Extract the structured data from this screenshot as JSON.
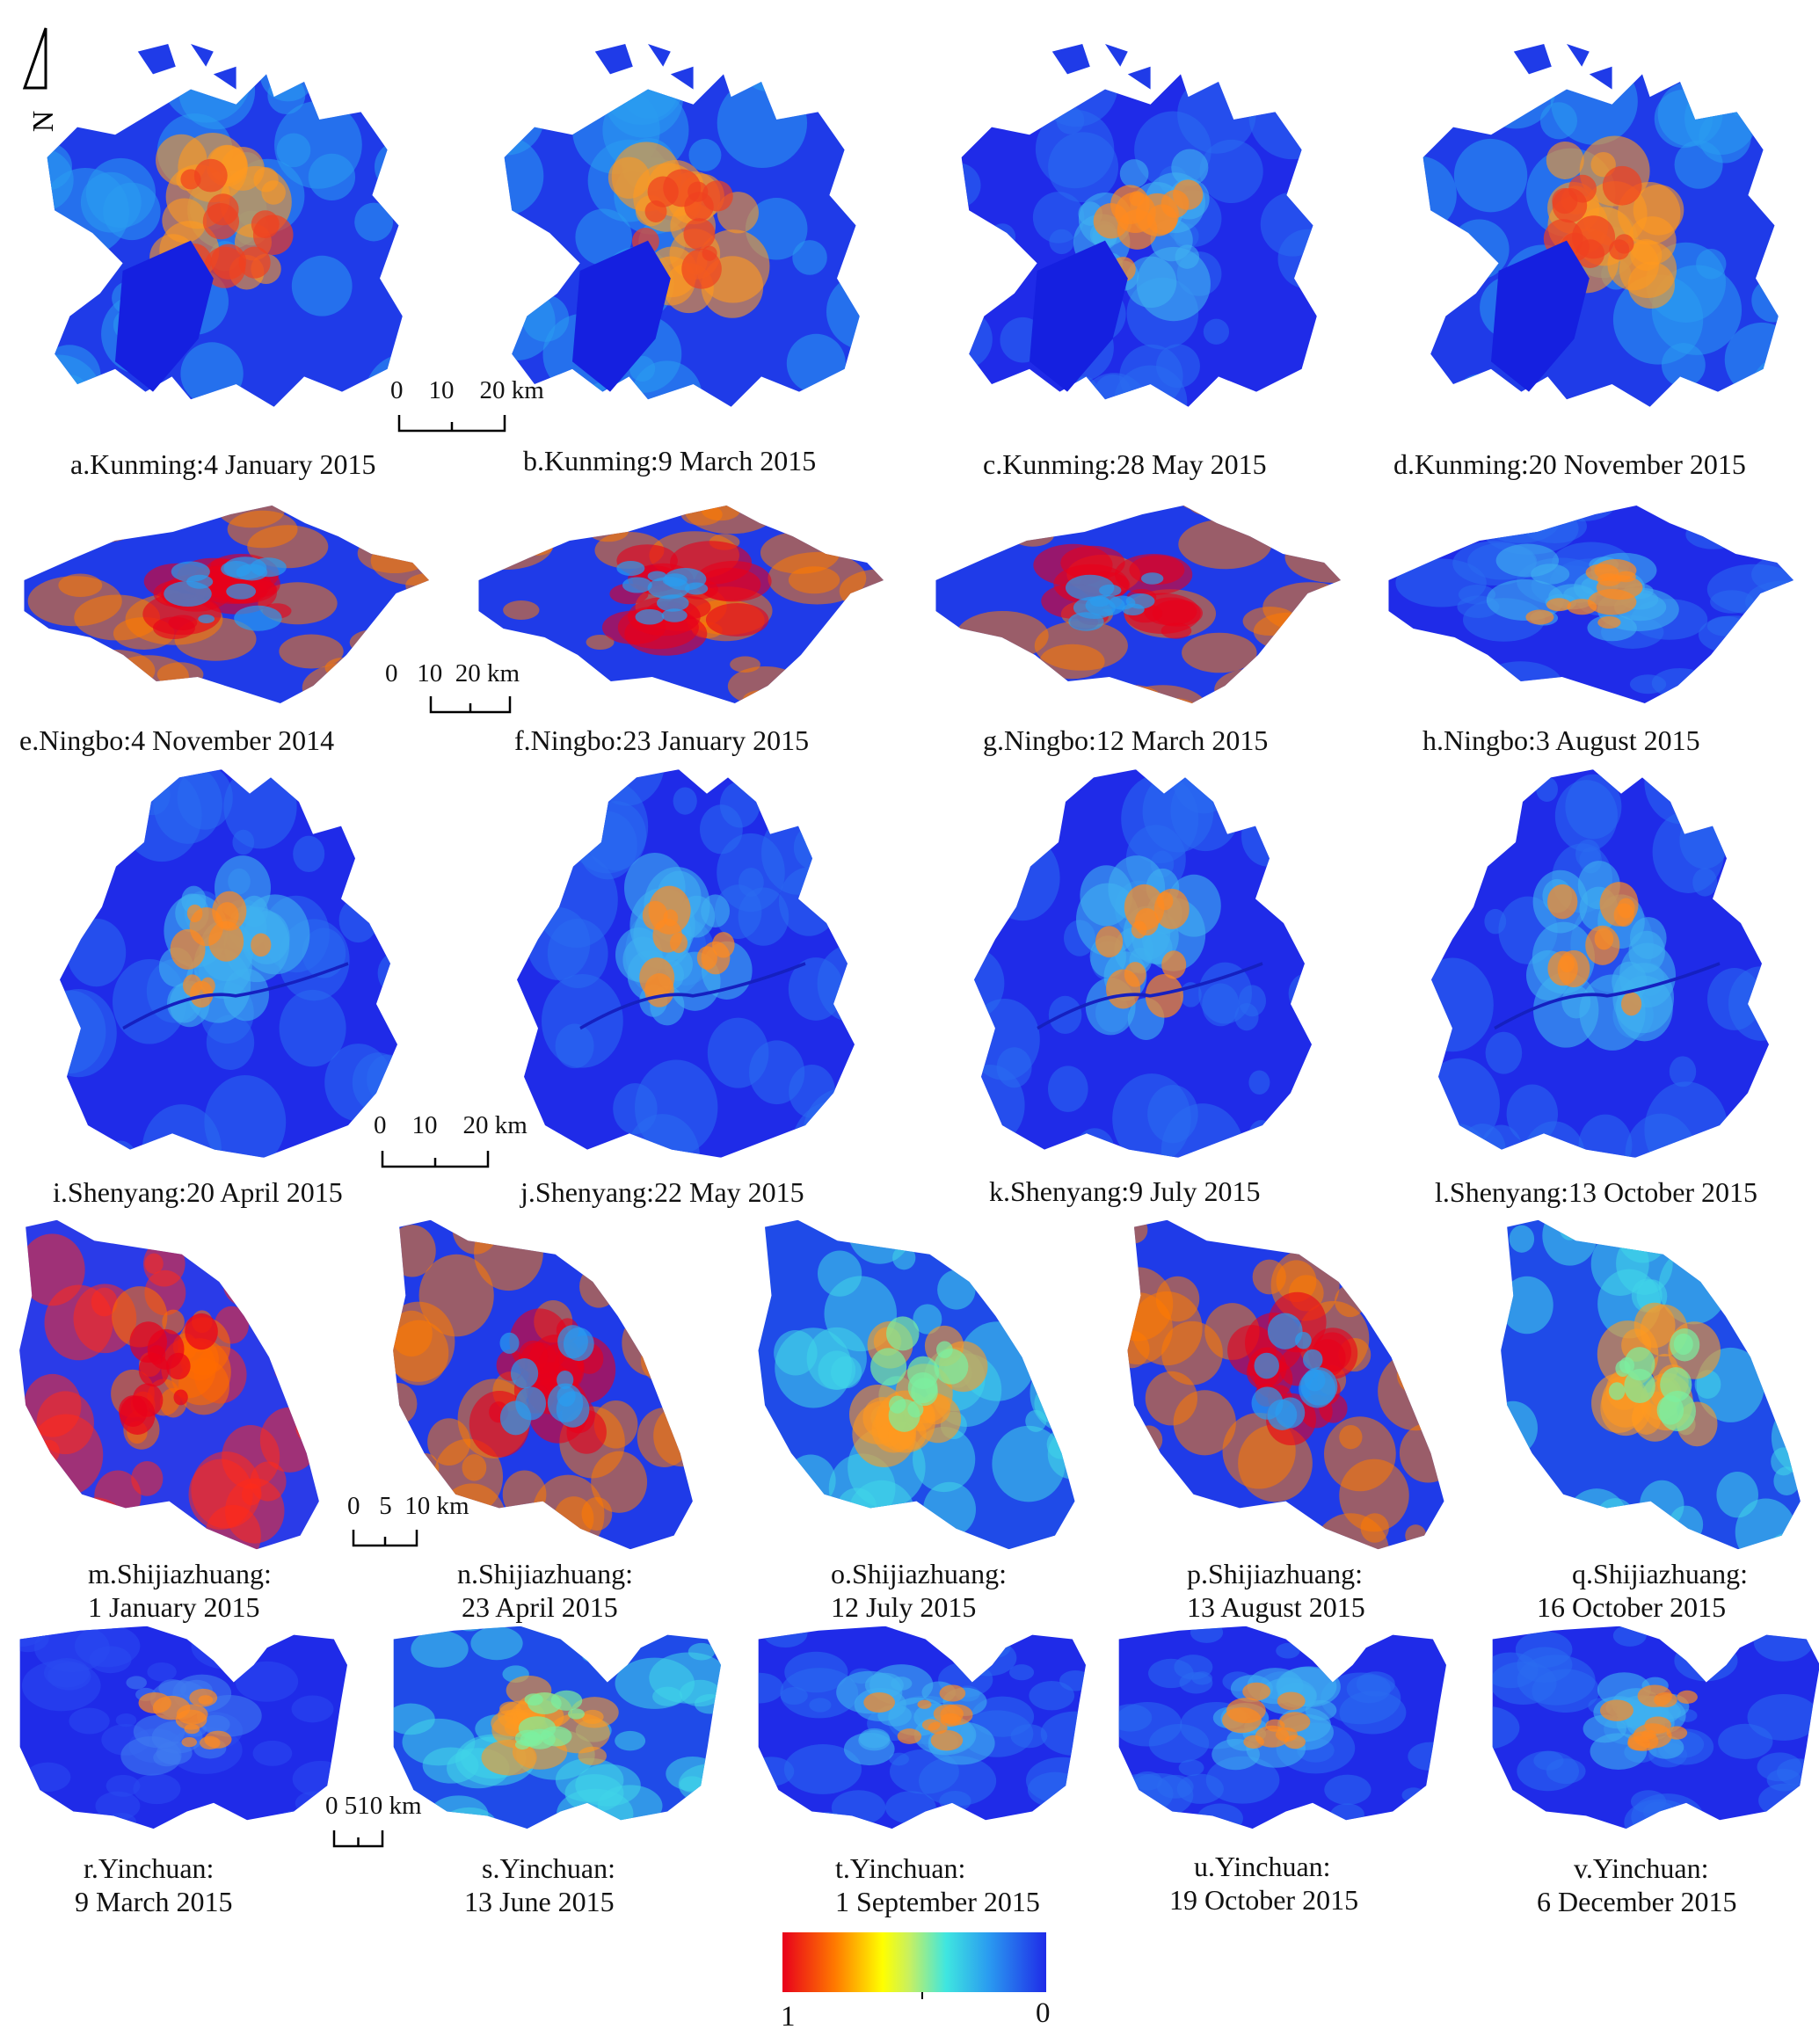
{
  "panels": [
    {
      "id": "a",
      "shape": "kunming",
      "ramp": "mid",
      "line1": "a.Kunming:4 January 2015"
    },
    {
      "id": "b",
      "shape": "kunming",
      "ramp": "mid",
      "line1": "b.Kunming:9 March 2015"
    },
    {
      "id": "c",
      "shape": "kunming",
      "ramp": "cool",
      "line1": "c.Kunming:28 May 2015"
    },
    {
      "id": "d",
      "shape": "kunming",
      "ramp": "mid",
      "line1": "d.Kunming:20 November 2015"
    },
    {
      "id": "e",
      "shape": "ningbo",
      "ramp": "warm",
      "line1": "e.Ningbo:4 November 2014"
    },
    {
      "id": "f",
      "shape": "ningbo",
      "ramp": "warm",
      "line1": "f.Ningbo:23 January 2015"
    },
    {
      "id": "g",
      "shape": "ningbo",
      "ramp": "warm",
      "line1": "g.Ningbo:12 March 2015"
    },
    {
      "id": "h",
      "shape": "ningbo",
      "ramp": "cool",
      "line1": "h.Ningbo:3 August 2015"
    },
    {
      "id": "i",
      "shape": "shenyang",
      "ramp": "cool",
      "line1": "i.Shenyang:20 April 2015"
    },
    {
      "id": "j",
      "shape": "shenyang",
      "ramp": "cool",
      "line1": "j.Shenyang:22 May 2015"
    },
    {
      "id": "k",
      "shape": "shenyang",
      "ramp": "cool",
      "line1": "k.Shenyang:9 July 2015"
    },
    {
      "id": "l",
      "shape": "shenyang",
      "ramp": "cool",
      "line1": "l.Shenyang:13 October 2015"
    },
    {
      "id": "m",
      "shape": "shijiazhuang",
      "ramp": "hot",
      "line1": "m.Shijiazhuang:",
      "line2": "1 January 2015"
    },
    {
      "id": "n",
      "shape": "shijiazhuang",
      "ramp": "warm",
      "line1": "n.Shijiazhuang:",
      "line2": "23 April 2015"
    },
    {
      "id": "o",
      "shape": "shijiazhuang",
      "ramp": "cyan",
      "line1": "o.Shijiazhuang:",
      "line2": "12 July 2015"
    },
    {
      "id": "p",
      "shape": "shijiazhuang",
      "ramp": "warm",
      "line1": "p.Shijiazhuang:",
      "line2": "13 August 2015"
    },
    {
      "id": "q",
      "shape": "shijiazhuang",
      "ramp": "cyan",
      "line1": "q.Shijiazhuang:",
      "line2": "16 October 2015"
    },
    {
      "id": "r",
      "shape": "yinchuan",
      "ramp": "cold",
      "line1": "r.Yinchuan:",
      "line2": "9 March 2015"
    },
    {
      "id": "s",
      "shape": "yinchuan",
      "ramp": "cyan",
      "line1": "s.Yinchuan:",
      "line2": "13 June 2015"
    },
    {
      "id": "t",
      "shape": "yinchuan",
      "ramp": "cool",
      "line1": "t.Yinchuan:",
      "line2": "1 September 2015"
    },
    {
      "id": "u",
      "shape": "yinchuan",
      "ramp": "cool",
      "line1": "u.Yinchuan:",
      "line2": "19 October 2015"
    },
    {
      "id": "v",
      "shape": "yinchuan",
      "ramp": "cool",
      "line1": "v.Yinchuan:",
      "line2": "6 December 2015"
    }
  ],
  "scalebars": [
    {
      "label": "0    10    20 km"
    },
    {
      "label": "0   10  20 km"
    },
    {
      "label": "0    10    20 km"
    },
    {
      "label": "0   5  10 km"
    },
    {
      "label": "0 510 km"
    }
  ],
  "legend": {
    "max_label": "1",
    "min_label": "0",
    "colors": [
      "#e8001b",
      "#ffff00",
      "#3fe6e0",
      "#1f2be8"
    ]
  },
  "north_arrow": {
    "letter": "N"
  }
}
